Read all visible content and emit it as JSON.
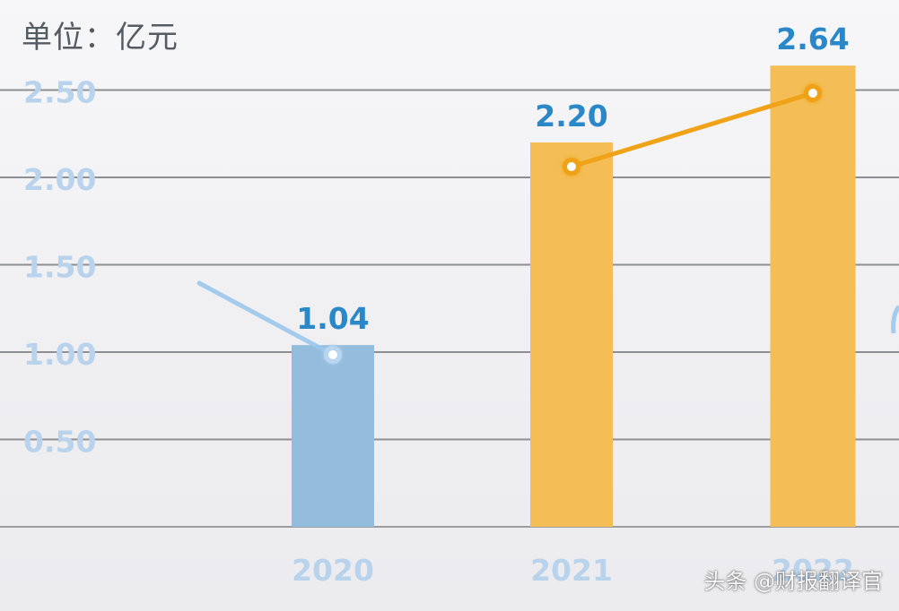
{
  "chart_data": {
    "type": "bar",
    "unit_label": "单位：亿元",
    "categories": [
      "2020",
      "2021",
      "2022"
    ],
    "values": [
      1.04,
      2.2,
      2.64
    ],
    "value_labels": [
      "1.04",
      "2.20",
      "2.64"
    ],
    "y_ticks": [
      "0.50",
      "1.00",
      "1.50",
      "2.00",
      "2.50"
    ],
    "y_tick_values": [
      0.5,
      1.0,
      1.5,
      2.0,
      2.5
    ],
    "ylim": [
      0,
      3
    ],
    "grid": true,
    "bar_colors": [
      "#94bcdc",
      "#f4bd55",
      "#f4bd55"
    ],
    "line_color_2020": "#9cc6ec",
    "line_color_2021_2022": "#f0a218",
    "label_color": "#2a88c8",
    "tick_color": "#b9d3ec"
  },
  "watermark": "头条 @财报翻译官"
}
